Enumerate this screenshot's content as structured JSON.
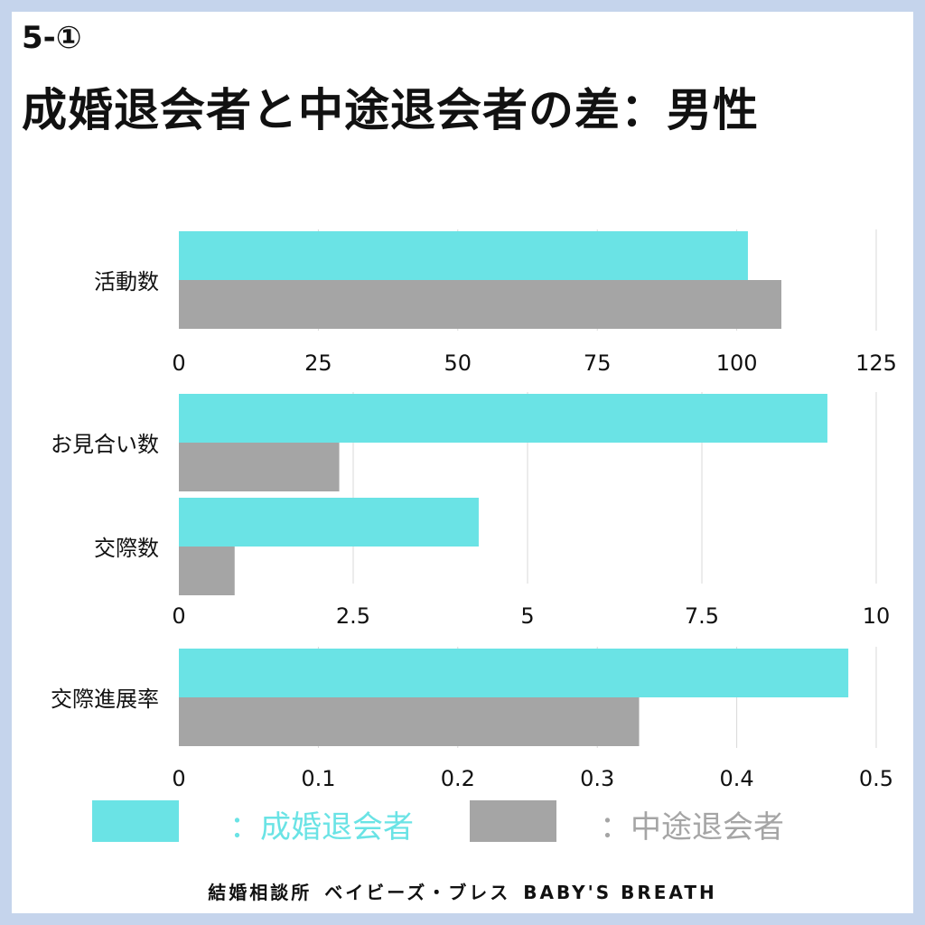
{
  "header": {
    "section": "5-①",
    "title": "成婚退会者と中途退会者の差：男性"
  },
  "colors": {
    "married": "#6ae3e5",
    "midway": "#a5a5a5",
    "grid": "#d9d9d9"
  },
  "chart_data": [
    {
      "type": "bar",
      "categories": [
        "活動数"
      ],
      "series": [
        {
          "name": "成婚退会者",
          "values": [
            102
          ]
        },
        {
          "name": "中途退会者",
          "values": [
            108
          ]
        }
      ],
      "xlim": [
        0,
        125
      ],
      "ticks": [
        "0",
        "25",
        "50",
        "75",
        "100",
        "125"
      ]
    },
    {
      "type": "bar",
      "categories": [
        "お見合い数",
        "交際数"
      ],
      "series": [
        {
          "name": "成婚退会者",
          "values": [
            9.3,
            4.3
          ]
        },
        {
          "name": "中途退会者",
          "values": [
            2.3,
            0.8
          ]
        }
      ],
      "xlim": [
        0,
        10
      ],
      "ticks": [
        "0",
        "2.5",
        "5",
        "7.5",
        "10"
      ]
    },
    {
      "type": "bar",
      "categories": [
        "交際進展率"
      ],
      "series": [
        {
          "name": "成婚退会者",
          "values": [
            0.48
          ]
        },
        {
          "name": "中途退会者",
          "values": [
            0.33
          ]
        }
      ],
      "xlim": [
        0,
        0.5
      ],
      "ticks": [
        "0",
        "0.1",
        "0.2",
        "0.3",
        "0.4",
        "0.5"
      ]
    }
  ],
  "legend": {
    "married_label": "：成婚退会者",
    "midway_label": "：中途退会者"
  },
  "footer": {
    "agency": "結婚相談所",
    "brand_jp": "ベイビーズ・ブレス",
    "brand_en": "BABY'S BREATH"
  }
}
